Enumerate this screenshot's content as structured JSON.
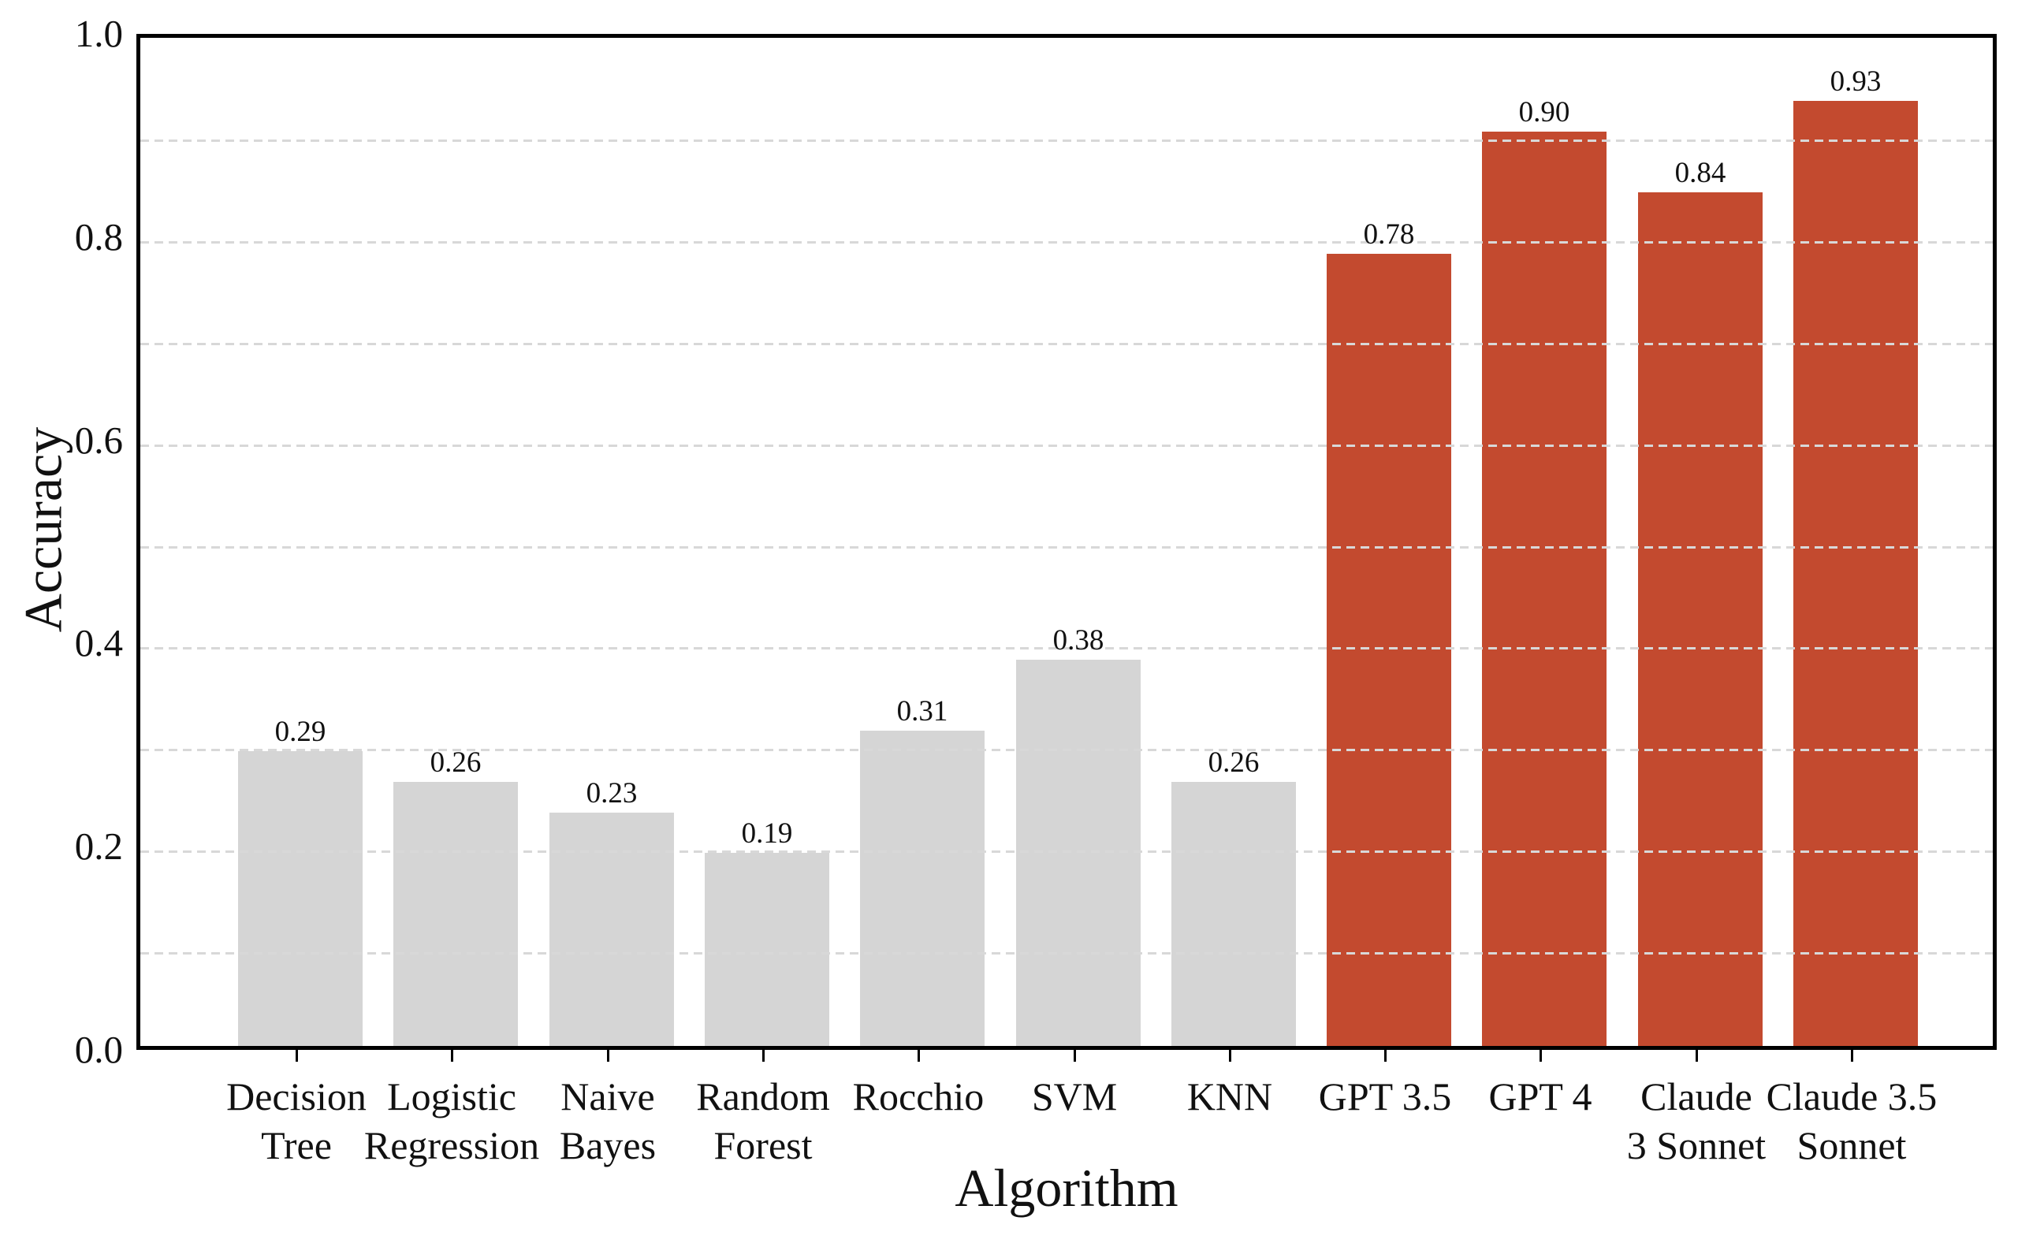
{
  "figure": {
    "background": "#ffffff",
    "axis_color": "#000000",
    "text_color": "#111111"
  },
  "chart_data": {
    "type": "bar",
    "title": "",
    "xlabel": "Algorithm",
    "ylabel": "Accuracy",
    "ylim": [
      0.0,
      1.0
    ],
    "ytick_labels": [
      "0.0",
      "0.2",
      "0.4",
      "0.6",
      "0.8",
      "1.0"
    ],
    "yticks": [
      0.0,
      0.2,
      0.4,
      0.6,
      0.8,
      1.0
    ],
    "grid": {
      "axis": "y",
      "interval": 0.1,
      "lines": [
        0.1,
        0.2,
        0.3,
        0.4,
        0.5,
        0.6,
        0.7,
        0.8,
        0.9
      ],
      "style": "dashed",
      "color": "#d8d8d8",
      "drawn_above_bars": true
    },
    "legend": "none",
    "categories": [
      "Decision\nTree",
      "Logistic\nRegression",
      "Naive\nBayes",
      "Random\nForest",
      "Rocchio",
      "SVM",
      "KNN",
      "GPT 3.5",
      "GPT 4",
      "Claude\n3 Sonnet",
      "Claude 3.5\nSonnet"
    ],
    "series": [
      {
        "name": "Accuracy",
        "values": [
          0.29,
          0.26,
          0.23,
          0.19,
          0.31,
          0.38,
          0.26,
          0.78,
          0.9,
          0.84,
          0.93
        ],
        "value_labels": [
          "0.29",
          "0.26",
          "0.23",
          "0.19",
          "0.31",
          "0.38",
          "0.26",
          "0.78",
          "0.90",
          "0.84",
          "0.93"
        ]
      }
    ],
    "bar_groups": [
      "classical",
      "classical",
      "classical",
      "classical",
      "classical",
      "classical",
      "classical",
      "llm",
      "llm",
      "llm",
      "llm"
    ],
    "group_colors": {
      "classical": "#d5d5d5",
      "llm": "#c34a2f"
    }
  }
}
